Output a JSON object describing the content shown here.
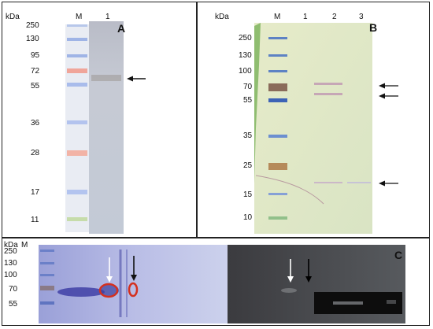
{
  "panel_a": {
    "unit": "kDa",
    "marker_lane": "M",
    "sample_lane": "1",
    "ladder": [
      "250",
      "130",
      "95",
      "72",
      "55",
      "36",
      "28",
      "17",
      "11"
    ],
    "tag": "A"
  },
  "panel_b": {
    "unit": "kDa",
    "marker_lane": "M",
    "lanes": [
      "1",
      "2",
      "3"
    ],
    "ladder": [
      "250",
      "130",
      "100",
      "70",
      "55",
      "35",
      "25",
      "15",
      "10"
    ],
    "tag": "B"
  },
  "panel_c": {
    "unit": "kDa",
    "marker_lane": "M",
    "ladder": [
      "250",
      "130",
      "100",
      "70",
      "55"
    ],
    "tag": "C"
  },
  "colors": {
    "border": "#222222",
    "arrow": "#111111",
    "ellipse": "#d4301f",
    "blot_purple": "#6b6fc4",
    "band_red": "#e88070",
    "band_blue": "#6a8ed6"
  }
}
